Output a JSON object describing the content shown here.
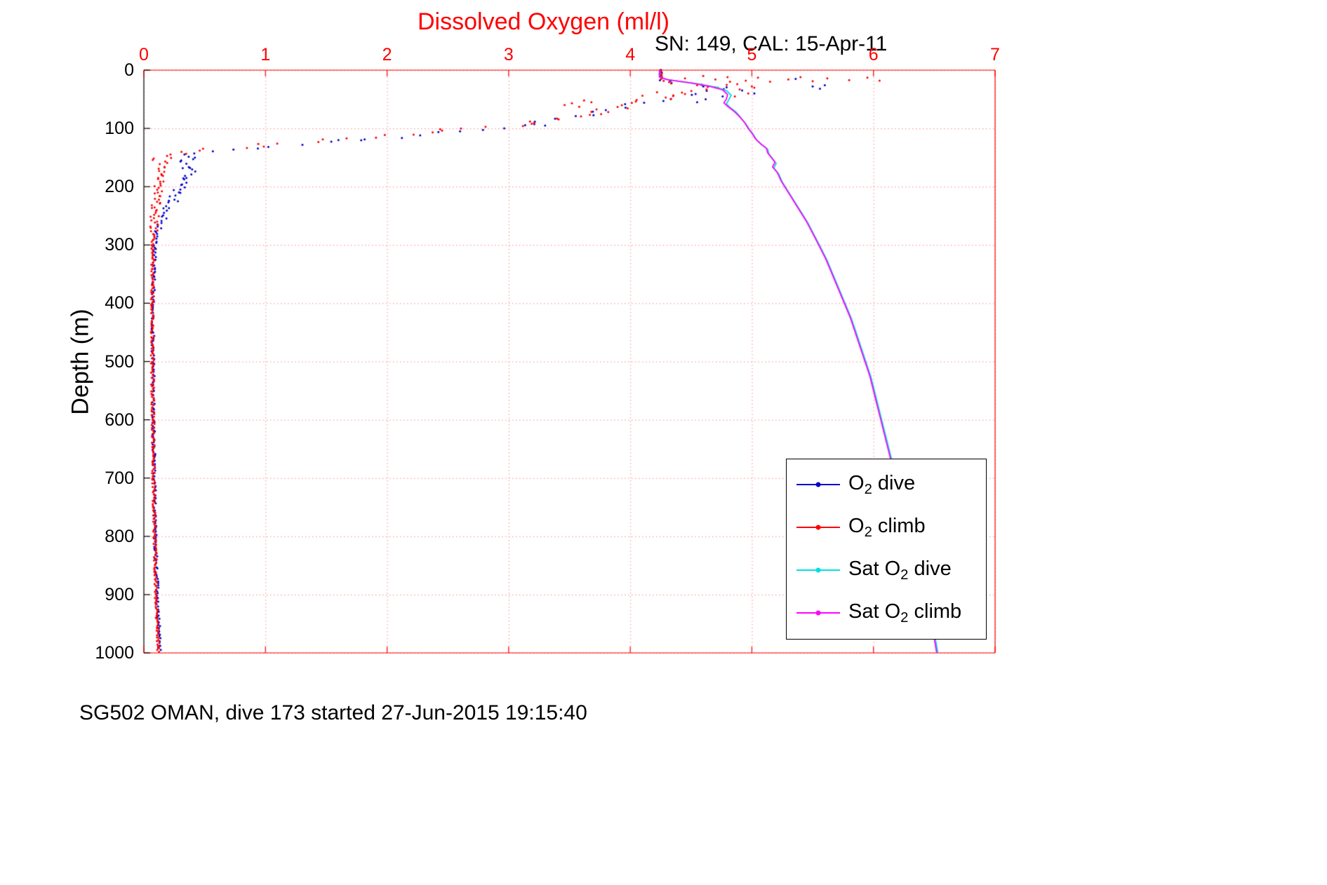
{
  "chart_data": {
    "type": "scatter",
    "title": "Dissolved Oxygen (ml/l)",
    "subtitle": "SN: 149, CAL: 15-Apr-11",
    "ylabel": "Depth (m)",
    "caption": "SG502 OMAN, dive 173 started 27-Jun-2015 19:15:40",
    "xlim": [
      0,
      7
    ],
    "ylim": [
      0,
      1000
    ],
    "y_inverted": true,
    "x_axis_position": "top",
    "x_ticks": [
      0,
      1,
      2,
      3,
      4,
      5,
      6,
      7
    ],
    "y_ticks": [
      0,
      100,
      200,
      300,
      400,
      500,
      600,
      700,
      800,
      900,
      1000
    ],
    "grid": true,
    "grid_color": "#ff8888",
    "x_axis_color": "#ff0000",
    "y_axis_color": "#000000",
    "legend_position": "lower-right",
    "series": [
      {
        "name": "O2 dive",
        "label_pre": "O",
        "label_sub": "2",
        "label_post": " dive",
        "color": "#0000cc",
        "style": "dots",
        "step": 3.5,
        "jitter_default": 0.012,
        "jitter_zones": [
          [
            20,
            152,
            0.1
          ],
          [
            152,
            280,
            0.045
          ]
        ],
        "profile": [
          [
            0,
            4.25
          ],
          [
            16,
            4.25
          ],
          [
            22,
            4.4
          ],
          [
            28,
            4.7
          ],
          [
            34,
            4.75
          ],
          [
            40,
            4.6
          ],
          [
            48,
            4.4
          ],
          [
            56,
            4.15
          ],
          [
            64,
            3.95
          ],
          [
            72,
            3.75
          ],
          [
            80,
            3.55
          ],
          [
            88,
            3.3
          ],
          [
            96,
            3.05
          ],
          [
            104,
            2.7
          ],
          [
            112,
            2.3
          ],
          [
            118,
            1.9
          ],
          [
            124,
            1.5
          ],
          [
            130,
            1.1
          ],
          [
            136,
            0.75
          ],
          [
            142,
            0.45
          ],
          [
            148,
            0.3
          ],
          [
            158,
            0.32
          ],
          [
            175,
            0.38
          ],
          [
            195,
            0.33
          ],
          [
            215,
            0.25
          ],
          [
            235,
            0.2
          ],
          [
            255,
            0.15
          ],
          [
            300,
            0.09
          ],
          [
            400,
            0.075
          ],
          [
            500,
            0.075
          ],
          [
            600,
            0.08
          ],
          [
            700,
            0.085
          ],
          [
            800,
            0.095
          ],
          [
            900,
            0.11
          ],
          [
            1000,
            0.13
          ]
        ],
        "outliers": [
          [
            5.5,
            28
          ],
          [
            5.56,
            32
          ],
          [
            5.6,
            26
          ],
          [
            4.92,
            35
          ],
          [
            5.02,
            40
          ],
          [
            4.76,
            45
          ],
          [
            5.36,
            15
          ],
          [
            4.62,
            50
          ],
          [
            4.55,
            55
          ],
          [
            3.3,
            95
          ],
          [
            2.6,
            105
          ],
          [
            1.6,
            120
          ],
          [
            0.42,
            150
          ],
          [
            0.38,
            168
          ],
          [
            0.35,
            185
          ],
          [
            0.3,
            205
          ],
          [
            0.28,
            225
          ]
        ]
      },
      {
        "name": "O2 climb",
        "label_pre": "O",
        "label_sub": "2",
        "label_post": " climb",
        "color": "#ff0000",
        "style": "dots",
        "step": 2.5,
        "jitter_default": 0.012,
        "jitter_zones": [
          [
            20,
            160,
            0.13
          ],
          [
            160,
            280,
            0.035
          ]
        ],
        "profile": [
          [
            0,
            4.25
          ],
          [
            16,
            4.25
          ],
          [
            20,
            4.32
          ],
          [
            24,
            4.6
          ],
          [
            28,
            4.75
          ],
          [
            32,
            4.7
          ],
          [
            38,
            4.55
          ],
          [
            45,
            4.35
          ],
          [
            52,
            4.15
          ],
          [
            60,
            3.95
          ],
          [
            68,
            3.8
          ],
          [
            75,
            3.65
          ],
          [
            82,
            3.5
          ],
          [
            88,
            3.3
          ],
          [
            95,
            3.0
          ],
          [
            100,
            2.7
          ],
          [
            105,
            2.4
          ],
          [
            110,
            2.1
          ],
          [
            115,
            1.8
          ],
          [
            120,
            1.5
          ],
          [
            125,
            1.2
          ],
          [
            130,
            0.9
          ],
          [
            135,
            0.6
          ],
          [
            140,
            0.35
          ],
          [
            145,
            0.22
          ],
          [
            155,
            0.17
          ],
          [
            170,
            0.14
          ],
          [
            200,
            0.12
          ],
          [
            250,
            0.09
          ],
          [
            300,
            0.075
          ],
          [
            400,
            0.07
          ],
          [
            500,
            0.07
          ],
          [
            600,
            0.075
          ],
          [
            700,
            0.08
          ],
          [
            800,
            0.09
          ],
          [
            900,
            0.1
          ],
          [
            1000,
            0.12
          ]
        ],
        "outliers": [
          [
            4.45,
            14
          ],
          [
            4.6,
            10
          ],
          [
            4.7,
            16
          ],
          [
            4.8,
            12
          ],
          [
            4.95,
            18
          ],
          [
            5.05,
            13
          ],
          [
            5.15,
            20
          ],
          [
            5.3,
            16
          ],
          [
            5.4,
            12
          ],
          [
            5.5,
            19
          ],
          [
            5.62,
            14
          ],
          [
            5.8,
            17
          ],
          [
            5.95,
            13
          ],
          [
            6.05,
            18
          ],
          [
            4.55,
            26
          ],
          [
            4.72,
            30
          ],
          [
            4.88,
            24
          ],
          [
            5.0,
            28
          ],
          [
            4.82,
            20
          ],
          [
            4.9,
            33
          ],
          [
            4.97,
            40
          ],
          [
            5.02,
            30
          ],
          [
            4.86,
            45
          ],
          [
            3.62,
            52
          ],
          [
            3.52,
            57
          ],
          [
            3.58,
            63
          ],
          [
            3.46,
            60
          ],
          [
            3.68,
            55
          ],
          [
            4.1,
            44
          ],
          [
            4.22,
            38
          ]
        ]
      },
      {
        "name": "Sat O2 dive",
        "label_pre": "Sat O",
        "label_sub": "2",
        "label_post": " dive",
        "color": "#00e0e0",
        "style": "line",
        "profile": [
          [
            0,
            4.24
          ],
          [
            12,
            4.24
          ],
          [
            17,
            4.32
          ],
          [
            23,
            4.54
          ],
          [
            29,
            4.7
          ],
          [
            35,
            4.79
          ],
          [
            43,
            4.83
          ],
          [
            51,
            4.81
          ],
          [
            58,
            4.79
          ],
          [
            64,
            4.82
          ],
          [
            72,
            4.87
          ],
          [
            82,
            4.91
          ],
          [
            92,
            4.95
          ],
          [
            102,
            4.98
          ],
          [
            110,
            5.01
          ],
          [
            120,
            5.04
          ],
          [
            128,
            5.08
          ],
          [
            136,
            5.13
          ],
          [
            144,
            5.14
          ],
          [
            152,
            5.17
          ],
          [
            160,
            5.2
          ],
          [
            168,
            5.18
          ],
          [
            178,
            5.22
          ],
          [
            192,
            5.25
          ],
          [
            202,
            5.28
          ],
          [
            222,
            5.34
          ],
          [
            242,
            5.4
          ],
          [
            262,
            5.46
          ],
          [
            282,
            5.51
          ],
          [
            302,
            5.56
          ],
          [
            327,
            5.62
          ],
          [
            352,
            5.67
          ],
          [
            377,
            5.72
          ],
          [
            402,
            5.77
          ],
          [
            427,
            5.82
          ],
          [
            452,
            5.86
          ],
          [
            477,
            5.9
          ],
          [
            502,
            5.94
          ],
          [
            527,
            5.98
          ],
          [
            552,
            6.01
          ],
          [
            577,
            6.04
          ],
          [
            602,
            6.07
          ],
          [
            627,
            6.1
          ],
          [
            652,
            6.13
          ],
          [
            677,
            6.16
          ],
          [
            702,
            6.19
          ],
          [
            727,
            6.22
          ],
          [
            752,
            6.25
          ],
          [
            777,
            6.28
          ],
          [
            802,
            6.31
          ],
          [
            827,
            6.34
          ],
          [
            852,
            6.37
          ],
          [
            877,
            6.4
          ],
          [
            902,
            6.43
          ],
          [
            927,
            6.46
          ],
          [
            952,
            6.48
          ],
          [
            977,
            6.51
          ],
          [
            1000,
            6.53
          ]
        ]
      },
      {
        "name": "Sat O2 climb",
        "label_pre": "Sat O",
        "label_sub": "2",
        "label_post": " climb",
        "color": "#ff00ff",
        "style": "line",
        "profile": [
          [
            0,
            4.24
          ],
          [
            12,
            4.24
          ],
          [
            16,
            4.3
          ],
          [
            22,
            4.5
          ],
          [
            28,
            4.66
          ],
          [
            34,
            4.76
          ],
          [
            42,
            4.8
          ],
          [
            50,
            4.79
          ],
          [
            56,
            4.77
          ],
          [
            62,
            4.8
          ],
          [
            70,
            4.85
          ],
          [
            80,
            4.9
          ],
          [
            90,
            4.94
          ],
          [
            100,
            4.97
          ],
          [
            108,
            5.0
          ],
          [
            118,
            5.03
          ],
          [
            126,
            5.07
          ],
          [
            134,
            5.12
          ],
          [
            142,
            5.13
          ],
          [
            150,
            5.16
          ],
          [
            158,
            5.19
          ],
          [
            166,
            5.17
          ],
          [
            176,
            5.21
          ],
          [
            190,
            5.24
          ],
          [
            200,
            5.27
          ],
          [
            220,
            5.33
          ],
          [
            240,
            5.39
          ],
          [
            260,
            5.45
          ],
          [
            280,
            5.5
          ],
          [
            300,
            5.55
          ],
          [
            325,
            5.61
          ],
          [
            350,
            5.66
          ],
          [
            375,
            5.71
          ],
          [
            400,
            5.76
          ],
          [
            425,
            5.81
          ],
          [
            450,
            5.85
          ],
          [
            475,
            5.89
          ],
          [
            500,
            5.93
          ],
          [
            525,
            5.97
          ],
          [
            550,
            6.0
          ],
          [
            575,
            6.03
          ],
          [
            600,
            6.06
          ],
          [
            625,
            6.09
          ],
          [
            650,
            6.12
          ],
          [
            675,
            6.15
          ],
          [
            700,
            6.18
          ],
          [
            725,
            6.21
          ],
          [
            750,
            6.24
          ],
          [
            775,
            6.27
          ],
          [
            800,
            6.3
          ],
          [
            825,
            6.33
          ],
          [
            850,
            6.36
          ],
          [
            875,
            6.39
          ],
          [
            900,
            6.42
          ],
          [
            925,
            6.45
          ],
          [
            950,
            6.47
          ],
          [
            975,
            6.5
          ],
          [
            1000,
            6.52
          ]
        ]
      }
    ]
  }
}
